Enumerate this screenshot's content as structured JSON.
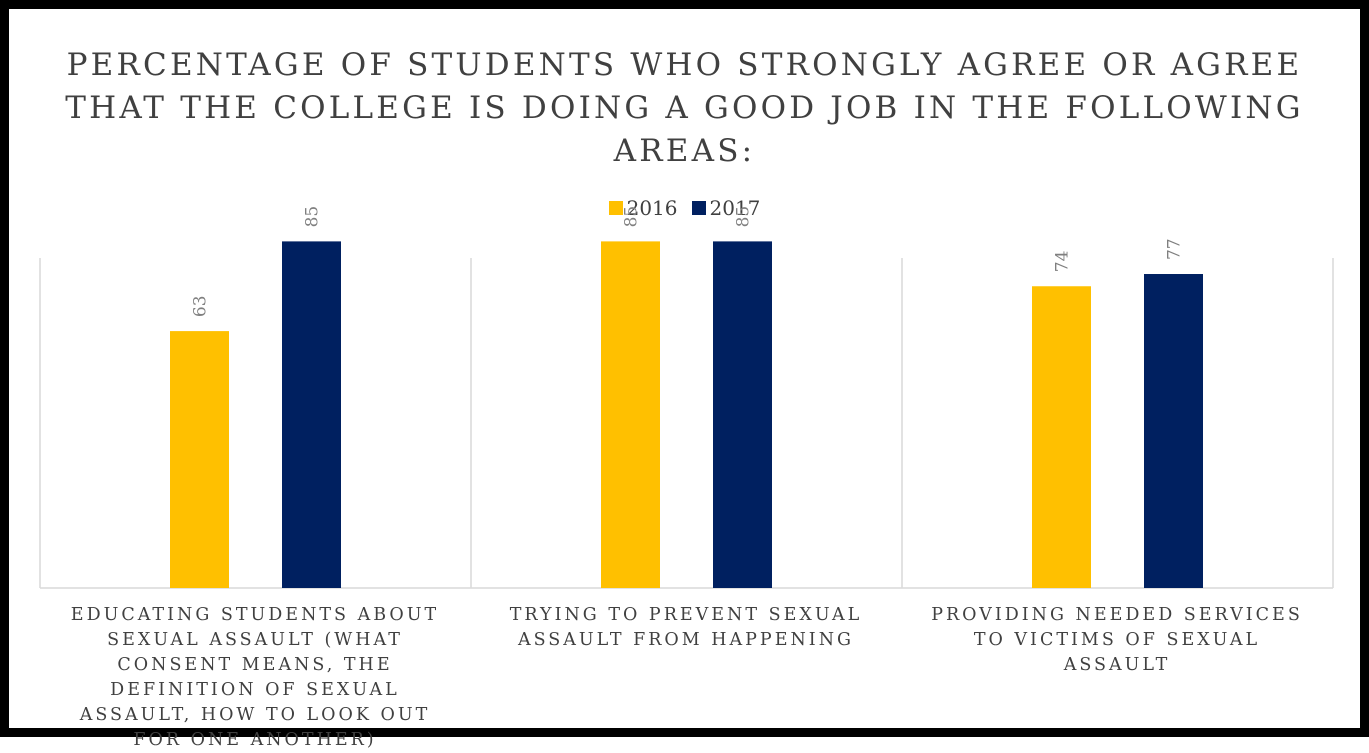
{
  "chart_data": {
    "type": "bar",
    "title": "PERCENTAGE OF STUDENTS WHO STRONGLY AGREE OR AGREE THAT THE COLLEGE IS DOING A GOOD JOB IN THE FOLLOWING AREAS:",
    "categories": [
      "EDUCATING STUDENTS ABOUT SEXUAL ASSAULT (WHAT CONSENT MEANS, THE DEFINITION OF SEXUAL ASSAULT, HOW TO LOOK OUT FOR ONE ANOTHER)",
      "TRYING TO PREVENT SEXUAL ASSAULT FROM HAPPENING",
      "PROVIDING NEEDED SERVICES TO VICTIMS OF SEXUAL ASSAULT"
    ],
    "series": [
      {
        "name": "2016",
        "values": [
          63,
          85,
          74
        ],
        "color": "#FFC000"
      },
      {
        "name": "2017",
        "values": [
          85,
          85,
          77
        ],
        "color": "#002060"
      }
    ],
    "legend": "top-center",
    "ylim": [
      0,
      90
    ],
    "grid": false,
    "data_labels": true,
    "xlabel": "",
    "ylabel": ""
  },
  "colors": {
    "label_text": "#404040",
    "axis_line": "#D9D9D9",
    "border": "#000000"
  }
}
